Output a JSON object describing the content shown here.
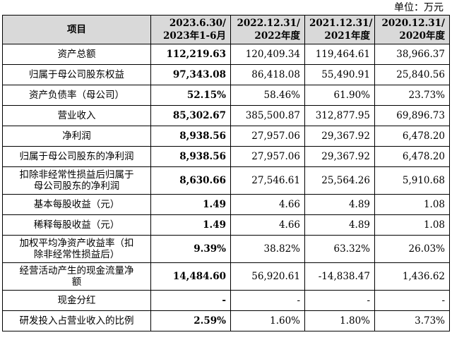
{
  "unit_label": "单位：万元",
  "header": {
    "item": "项目",
    "periods": [
      {
        "line1": "2023.6.30/",
        "line2": "2023年1-6月"
      },
      {
        "line1": "2022.12.31/",
        "line2": "2022年度"
      },
      {
        "line1": "2021.12.31/",
        "line2": "2021年度"
      },
      {
        "line1": "2020.12.31/",
        "line2": "2020年度"
      }
    ]
  },
  "rows": [
    {
      "label": [
        "资产总额"
      ],
      "values": [
        "112,219.63",
        "120,409.34",
        "119,464.61",
        "38,966.37"
      ]
    },
    {
      "label": [
        "归属于母公司股东权益"
      ],
      "values": [
        "97,343.08",
        "86,418.08",
        "55,490.91",
        "25,840.56"
      ]
    },
    {
      "label": [
        "资产负债率（母公司）"
      ],
      "values": [
        "52.15%",
        "58.46%",
        "61.90%",
        "23.73%"
      ]
    },
    {
      "label": [
        "营业收入"
      ],
      "values": [
        "85,302.67",
        "385,500.87",
        "312,877.95",
        "69,896.73"
      ]
    },
    {
      "label": [
        "净利润"
      ],
      "values": [
        "8,938.56",
        "27,957.06",
        "29,367.92",
        "6,478.20"
      ]
    },
    {
      "label": [
        "归属于母公司股东的净利润"
      ],
      "values": [
        "8,938.56",
        "27,957.06",
        "29,367.92",
        "6,478.20"
      ]
    },
    {
      "label": [
        "扣除非经常性损益后归属于",
        "母公司股东的净利润"
      ],
      "values": [
        "8,630.66",
        "27,546.61",
        "25,564.26",
        "5,910.68"
      ]
    },
    {
      "label": [
        "基本每股收益（元）"
      ],
      "values": [
        "1.49",
        "4.66",
        "4.89",
        "1.08"
      ]
    },
    {
      "label": [
        "稀释每股收益（元）"
      ],
      "values": [
        "1.49",
        "4.66",
        "4.89",
        "1.08"
      ]
    },
    {
      "label": [
        "加权平均净资产收益率（扣",
        "除非经常性损益后）"
      ],
      "values": [
        "9.39%",
        "38.82%",
        "63.32%",
        "26.03%"
      ]
    },
    {
      "label": [
        "经营活动产生的现金流量净",
        "额"
      ],
      "values": [
        "14,484.60",
        "56,920.61",
        "-14,838.47",
        "1,436.62"
      ]
    },
    {
      "label": [
        "现金分红"
      ],
      "values": [
        "-",
        "-",
        "-",
        "-"
      ]
    },
    {
      "label": [
        "研发投入占营业收入的比例"
      ],
      "values": [
        "2.59%",
        "1.60%",
        "1.80%",
        "3.73%"
      ]
    }
  ]
}
